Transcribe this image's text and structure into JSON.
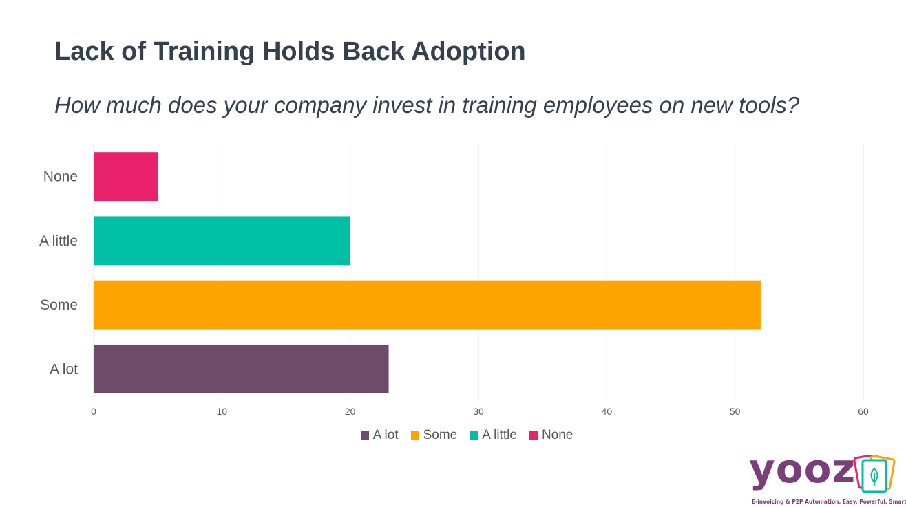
{
  "slide": {
    "title": "Lack of Training Holds Back Adoption",
    "subtitle": "How much does your company invest in training employees on new tools?"
  },
  "chart_data": {
    "type": "bar",
    "orientation": "horizontal",
    "title": "",
    "xlabel": "",
    "ylabel": "",
    "categories": [
      "A lot",
      "Some",
      "A little",
      "None"
    ],
    "values": [
      23,
      52,
      20,
      5
    ],
    "colors": [
      "#6e4a6b",
      "#ffa300",
      "#00bfa5",
      "#e8236b"
    ],
    "xlim": [
      0,
      60
    ],
    "xticks": [
      0,
      10,
      20,
      30,
      40,
      50,
      60
    ],
    "grid": "vertical",
    "legend": "bottom",
    "legend_entries": [
      "A lot",
      "Some",
      "A little",
      "None"
    ],
    "category_order_top_to_bottom": [
      "None",
      "A little",
      "Some",
      "A lot"
    ]
  },
  "logo": {
    "text": "yooz",
    "tagline": "E-invoicing & P2P Automation.  Easy.  Powerful.  Smart.",
    "brand_color": "#7a3f79"
  }
}
